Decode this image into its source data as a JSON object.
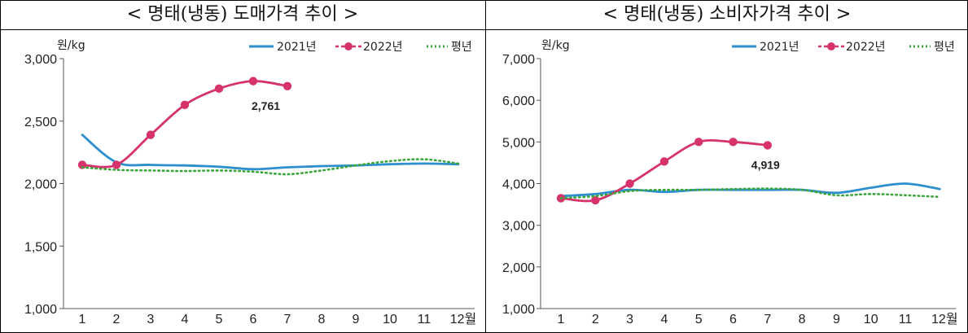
{
  "panels": [
    {
      "title": "< 명태(냉동) 도매가격 추이 >",
      "unit_label": "원/kg",
      "legend": [
        {
          "name": "2021년",
          "color": "#2e8fcf",
          "style": "solid"
        },
        {
          "name": "2022년",
          "color": "#d6336c",
          "style": "dots"
        },
        {
          "name": "평년",
          "color": "#3aa63a",
          "style": "dotted"
        }
      ],
      "x_labels": [
        "1",
        "2",
        "3",
        "4",
        "5",
        "6",
        "7",
        "8",
        "9",
        "10",
        "11",
        "12월"
      ],
      "y_ticks": [
        "1,000",
        "1,500",
        "2,000",
        "2,500",
        "3,000"
      ],
      "data_label": "2,761"
    },
    {
      "title": "< 명태(냉동) 소비자가격 추이 >",
      "unit_label": "원/kg",
      "legend": [
        {
          "name": "2021년",
          "color": "#2e8fcf",
          "style": "solid"
        },
        {
          "name": "2022년",
          "color": "#d6336c",
          "style": "dots"
        },
        {
          "name": "평년",
          "color": "#3aa63a",
          "style": "dotted"
        }
      ],
      "x_labels": [
        "1",
        "2",
        "3",
        "4",
        "5",
        "6",
        "7",
        "8",
        "9",
        "10",
        "11",
        "12월"
      ],
      "y_ticks": [
        "1,000",
        "2,000",
        "3,000",
        "4,000",
        "5,000",
        "6,000",
        "7,000"
      ],
      "data_label": "4,919"
    }
  ],
  "chart_data": [
    {
      "type": "line",
      "title": "< 명태(냉동) 도매가격 추이 >",
      "ylabel": "원/kg",
      "categories": [
        "1",
        "2",
        "3",
        "4",
        "5",
        "6",
        "7",
        "8",
        "9",
        "10",
        "11",
        "12월"
      ],
      "ylim": [
        1000,
        3000
      ],
      "grid": false,
      "legend_position": "top-right",
      "series": [
        {
          "name": "2021년",
          "color": "#2e8fcf",
          "values": [
            2390,
            2170,
            2150,
            2145,
            2135,
            2115,
            2130,
            2140,
            2145,
            2155,
            2160,
            2155
          ]
        },
        {
          "name": "2022년",
          "color": "#d6336c",
          "values": [
            2150,
            2150,
            2390,
            2630,
            2760,
            2820,
            2780,
            null,
            null,
            null,
            null,
            null
          ]
        },
        {
          "name": "평년",
          "color": "#3aa63a",
          "values": [
            2130,
            2110,
            2105,
            2100,
            2105,
            2095,
            2075,
            2105,
            2145,
            2180,
            2195,
            2160
          ]
        }
      ],
      "annotations": [
        {
          "text": "2,761",
          "x": "7"
        }
      ]
    },
    {
      "type": "line",
      "title": "< 명태(냉동) 소비자가격 추이 >",
      "ylabel": "원/kg",
      "categories": [
        "1",
        "2",
        "3",
        "4",
        "5",
        "6",
        "7",
        "8",
        "9",
        "10",
        "11",
        "12월"
      ],
      "ylim": [
        1000,
        7000
      ],
      "grid": false,
      "legend_position": "top-right",
      "series": [
        {
          "name": "2021년",
          "color": "#2e8fcf",
          "values": [
            3700,
            3750,
            3850,
            3800,
            3850,
            3850,
            3850,
            3850,
            3780,
            3900,
            4000,
            3870
          ]
        },
        {
          "name": "2022년",
          "color": "#d6336c",
          "values": [
            3650,
            3600,
            4000,
            4530,
            5000,
            5000,
            4920,
            null,
            null,
            null,
            null,
            null
          ]
        },
        {
          "name": "평년",
          "color": "#3aa63a",
          "values": [
            3650,
            3700,
            3820,
            3850,
            3850,
            3870,
            3880,
            3850,
            3720,
            3750,
            3720,
            3680
          ]
        }
      ],
      "annotations": [
        {
          "text": "4,919",
          "x": "7"
        }
      ]
    }
  ]
}
